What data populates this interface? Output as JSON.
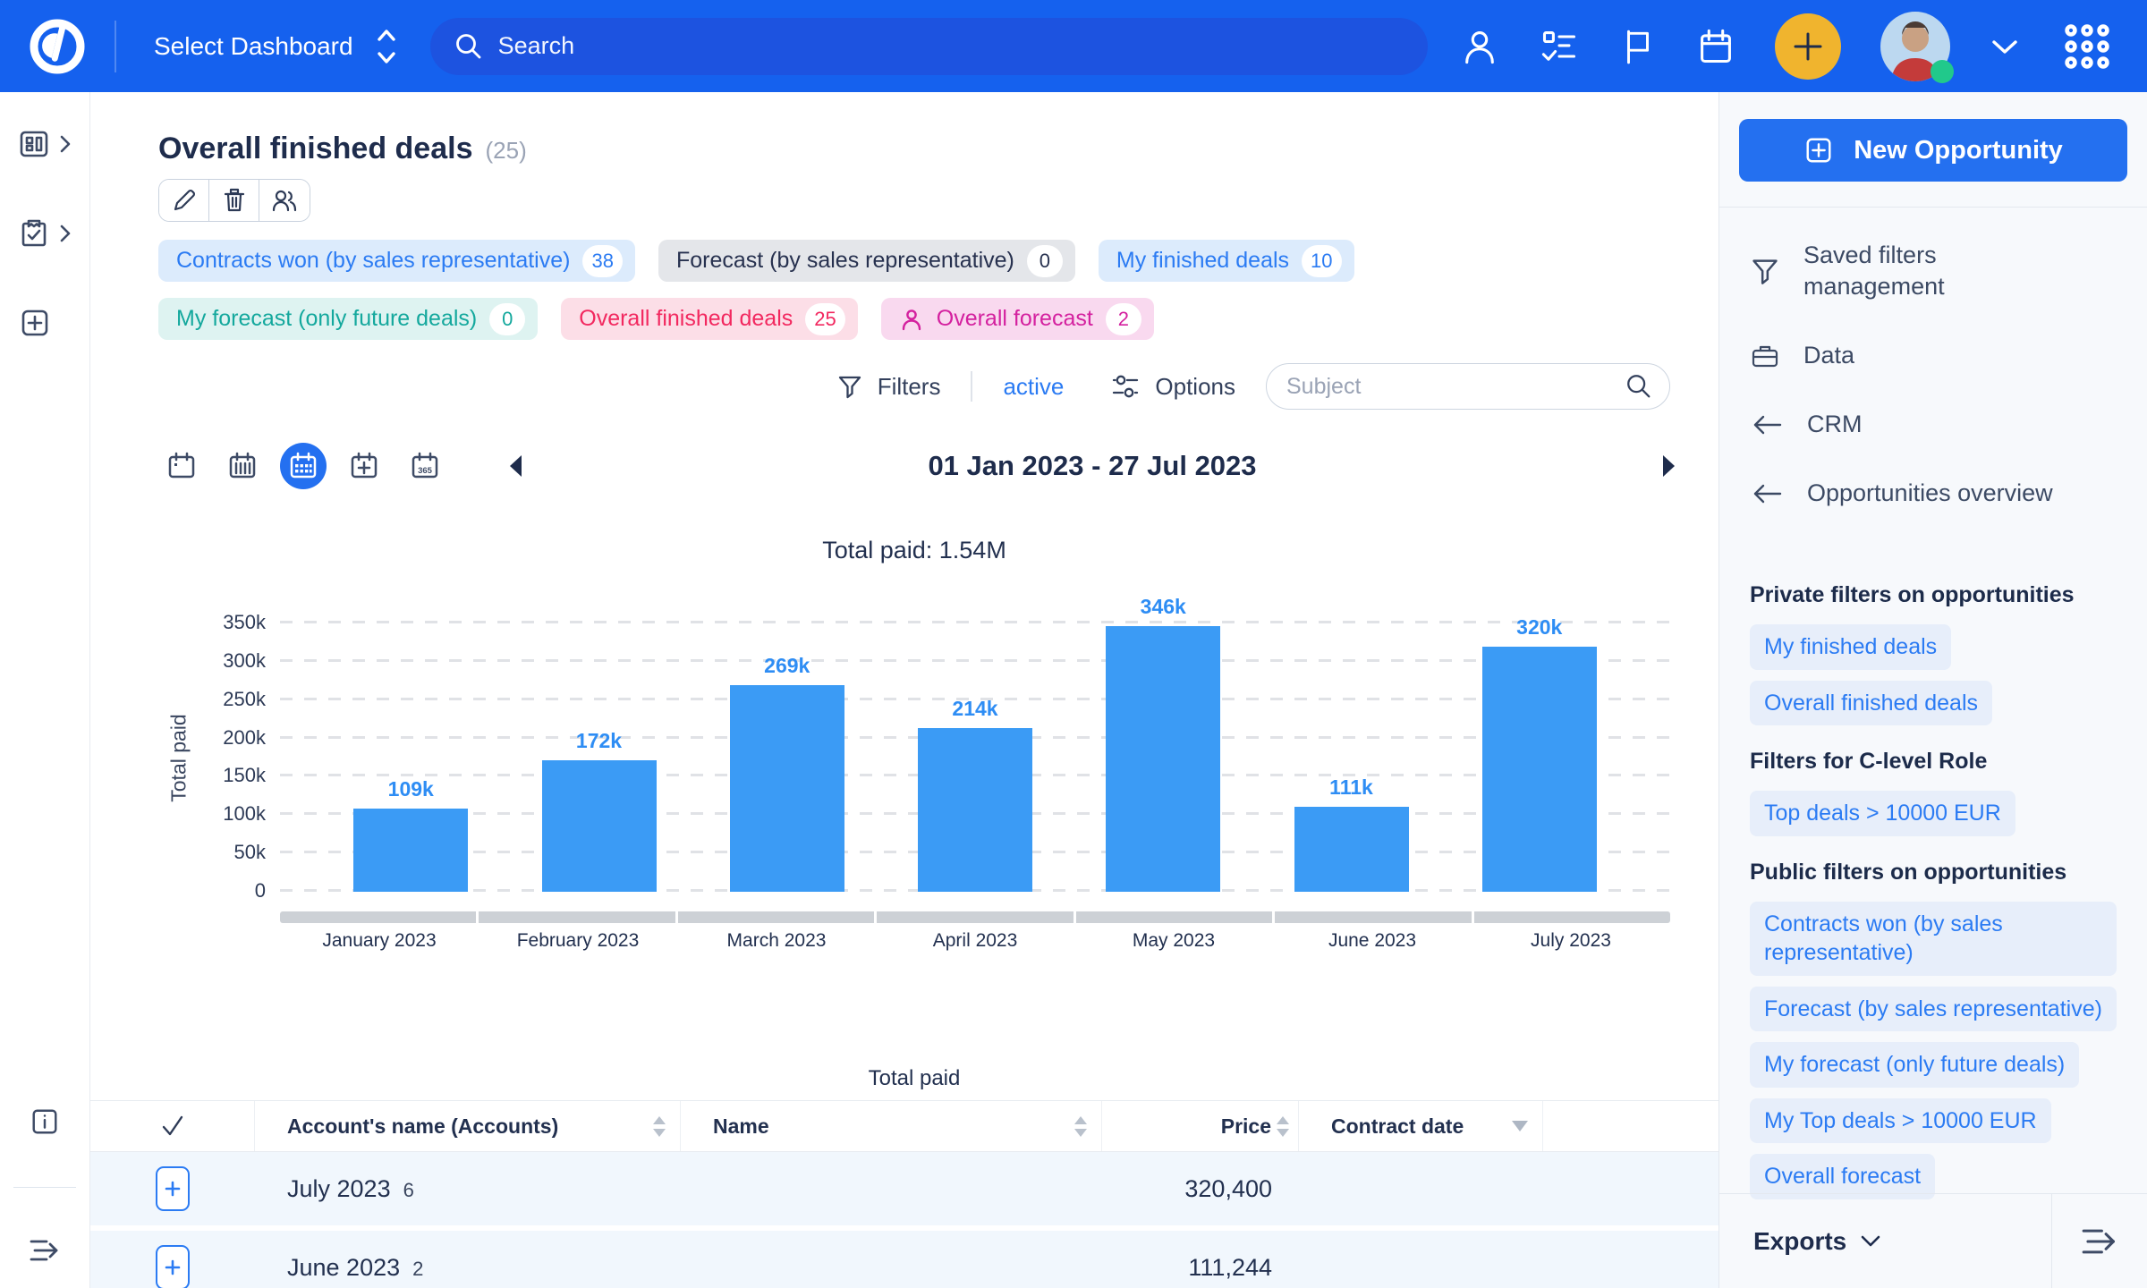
{
  "colors": {
    "header_bg": "#1561ee",
    "header_search_bg": "#1d53e0",
    "accent_yellow": "#f0b42e",
    "status_green": "#21c98b",
    "link_blue": "#2b7bf3",
    "bar_blue": "#3b9bf5",
    "navy_text": "#1e2c4c",
    "teal": "#14a89d",
    "red": "#f2285f",
    "magenta": "#d4219f",
    "sidebar_bg": "#f7f9fc",
    "row_bg": "#f1f7fd"
  },
  "icons": {
    "logo": "ring-d-mark",
    "search": "magnifier",
    "person": "user-outline",
    "tasks": "checklist",
    "flag": "flag",
    "calendar": "calendar",
    "add": "plus",
    "apps": "nine-dot-grid",
    "edit": "pencil",
    "delete": "trash",
    "share": "two-users",
    "filters": "funnel",
    "options": "sliders",
    "info": "info-square",
    "expand": "lines-arrow-right"
  },
  "header": {
    "select_dashboard": "Select Dashboard",
    "search_placeholder": "Search"
  },
  "page": {
    "title": "Overall finished deals",
    "count": "(25)"
  },
  "filter_chips": [
    {
      "label": "Contracts won (by sales representative)",
      "count": "38",
      "style": "blue"
    },
    {
      "label": "Forecast (by sales representative)",
      "count": "0",
      "style": "gray"
    },
    {
      "label": "My finished deals",
      "count": "10",
      "style": "blue"
    },
    {
      "label": "My forecast (only future deals)",
      "count": "0",
      "style": "teal"
    },
    {
      "label": "Overall finished deals",
      "count": "25",
      "style": "red"
    },
    {
      "label": "Overall forecast",
      "count": "2",
      "style": "magenta"
    }
  ],
  "toolbar": {
    "filters_label": "Filters",
    "filters_state": "active",
    "options_label": "Options",
    "subject_placeholder": "Subject"
  },
  "date_nav": {
    "range": "01 Jan 2023 - 27 Jul 2023"
  },
  "chart_data": {
    "type": "bar",
    "title": "Total paid: 1.54M",
    "ylabel": "Total paid",
    "categories": [
      "January 2023",
      "February 2023",
      "March 2023",
      "April 2023",
      "May 2023",
      "June 2023",
      "July 2023"
    ],
    "values": [
      109000,
      172000,
      269000,
      214000,
      346000,
      111000,
      320000
    ],
    "bar_labels": [
      "109k",
      "172k",
      "269k",
      "214k",
      "346k",
      "111k",
      "320k"
    ],
    "yticks": [
      "350k",
      "300k",
      "250k",
      "200k",
      "150k",
      "100k",
      "50k",
      "0"
    ],
    "ytick_values": [
      350000,
      300000,
      250000,
      200000,
      150000,
      100000,
      50000,
      0
    ],
    "ymax": 350000,
    "grid": "dashed-horizontal",
    "legend_position": "none",
    "bar_color": "#3b9bf5"
  },
  "table": {
    "caption": "Total paid",
    "columns": [
      "Account's name (Accounts)",
      "Name",
      "Price",
      "Contract date"
    ],
    "rows": [
      {
        "account": "July 2023",
        "count": "6",
        "name": "",
        "price": "320,400",
        "contract_date": ""
      },
      {
        "account": "June 2023",
        "count": "2",
        "name": "",
        "price": "111,244",
        "contract_date": ""
      }
    ]
  },
  "right_sidebar": {
    "new_opportunity": "New Opportunity",
    "items": [
      "Saved filters management",
      "Data",
      "CRM",
      "Opportunities overview"
    ],
    "sections": [
      {
        "heading": "Private filters on opportunities",
        "chips": [
          "My finished deals",
          "Overall finished deals"
        ]
      },
      {
        "heading": "Filters for C-level Role",
        "chips": [
          "Top deals > 10000 EUR"
        ]
      },
      {
        "heading": "Public filters on opportunities",
        "chips": [
          "Contracts won (by sales representative)",
          "Forecast (by sales representative)",
          "My forecast (only future deals)",
          "My Top deals > 10000 EUR",
          "Overall forecast"
        ]
      }
    ],
    "exports_label": "Exports"
  }
}
